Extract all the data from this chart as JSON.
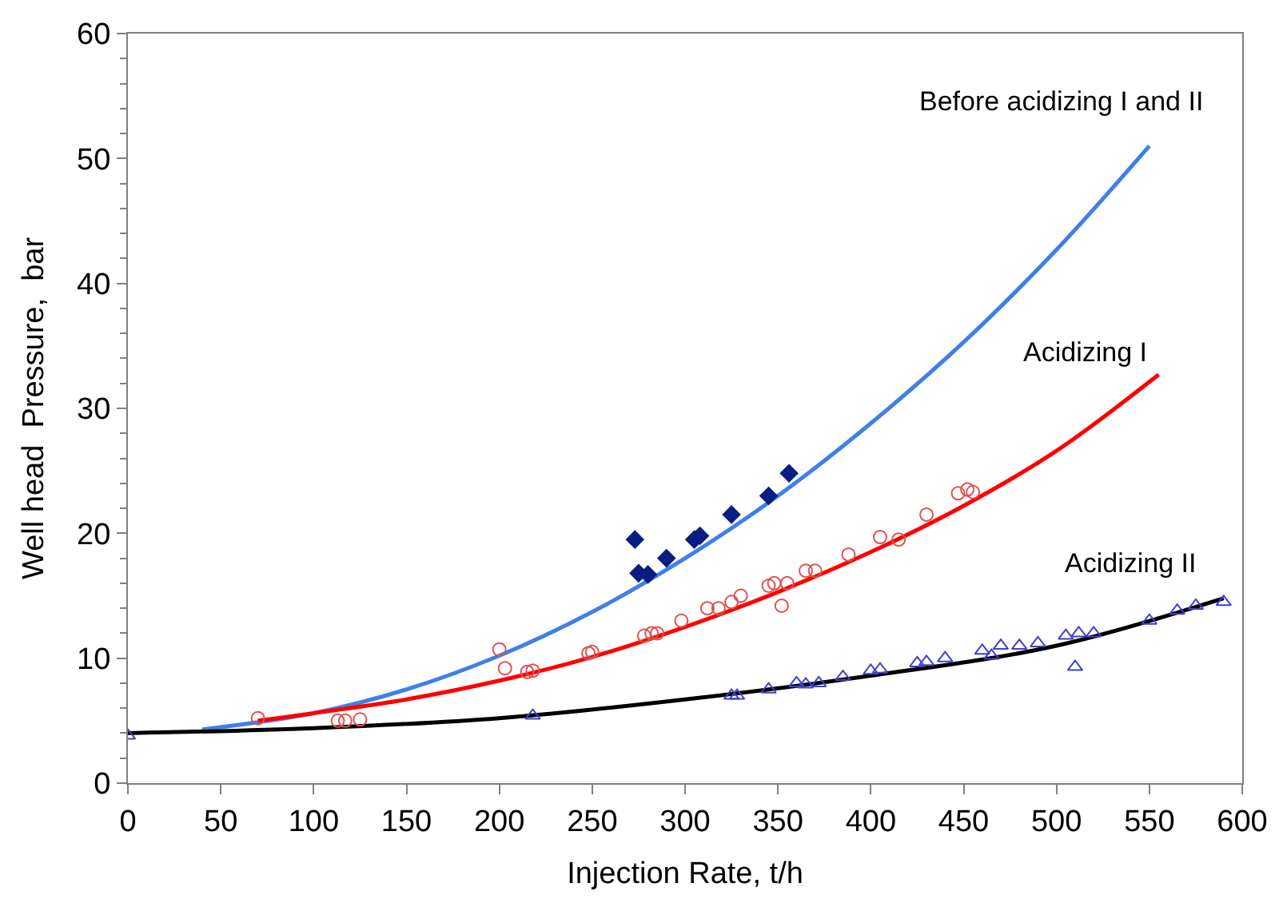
{
  "chart_data": {
    "type": "line",
    "xlabel": "Injection Rate, t/h",
    "ylabel": "Well head  Pressure,  bar",
    "xlim": [
      0,
      600
    ],
    "ylim": [
      0,
      60
    ],
    "xticks": [
      0,
      50,
      100,
      150,
      200,
      250,
      300,
      350,
      400,
      450,
      500,
      550,
      600
    ],
    "yticks": [
      0,
      {
        "value": 2,
        "label": null
      },
      {
        "value": 4,
        "label": null
      },
      {
        "value": 6,
        "label": null
      },
      {
        "value": 8,
        "label": null
      },
      10,
      {
        "value": 12,
        "label": null
      },
      {
        "value": 14,
        "label": null
      },
      {
        "value": 16,
        "label": null
      },
      {
        "value": 18,
        "label": null
      },
      20,
      {
        "value": 22,
        "label": null
      },
      {
        "value": 24,
        "label": null
      },
      {
        "value": 26,
        "label": null
      },
      {
        "value": 28,
        "label": null
      },
      30,
      {
        "value": 32,
        "label": null
      },
      {
        "value": 34,
        "label": null
      },
      {
        "value": 36,
        "label": null
      },
      {
        "value": 38,
        "label": null
      },
      40,
      {
        "value": 42,
        "label": null
      },
      {
        "value": 44,
        "label": null
      },
      {
        "value": 46,
        "label": null
      },
      {
        "value": 48,
        "label": null
      },
      50,
      {
        "value": 52,
        "label": null
      },
      {
        "value": 54,
        "label": null
      },
      {
        "value": 56,
        "label": null
      },
      {
        "value": 58,
        "label": null
      },
      60
    ],
    "legend": false,
    "series": [
      {
        "name": "Before acidizing I and II",
        "color": "#3f7fe8",
        "x": [
          40,
          100,
          150,
          200,
          250,
          300,
          350,
          400,
          450,
          500,
          550
        ],
        "values": [
          4.3,
          5.6,
          7.5,
          10.2,
          13.7,
          18,
          23,
          28.8,
          35.3,
          42.7,
          51
        ]
      },
      {
        "name": "Acidizing I",
        "color": "#ff0000",
        "x": [
          70,
          100,
          150,
          200,
          250,
          300,
          350,
          400,
          450,
          500,
          555
        ],
        "values": [
          5.0,
          5.6,
          6.7,
          8.2,
          10.1,
          12.5,
          15.3,
          18.5,
          22.2,
          26.6,
          32.7
        ]
      },
      {
        "name": "Acidizing II",
        "color": "#000000",
        "x": [
          0,
          100,
          200,
          300,
          400,
          500,
          590
        ],
        "values": [
          4,
          4.4,
          5.2,
          6.7,
          8.6,
          11.0,
          14.8
        ]
      },
      {
        "type": "scatter",
        "marker": "diamond",
        "color": "#0a1e82",
        "x": [
          273,
          275,
          280,
          290,
          305,
          308,
          325,
          345,
          356
        ],
        "values": [
          19.5,
          16.8,
          16.7,
          18,
          19.5,
          19.8,
          21.5,
          23,
          24.8
        ]
      },
      {
        "type": "scatter",
        "marker": "circle",
        "color": "#e05050",
        "x": [
          70,
          113,
          117,
          125,
          200,
          203,
          215,
          218,
          248,
          250,
          278,
          282,
          285,
          298,
          312,
          318,
          325,
          330,
          345,
          348,
          352,
          355,
          365,
          370,
          388,
          405,
          415,
          430,
          447,
          452,
          455
        ],
        "values": [
          5.2,
          5,
          5,
          5.1,
          10.7,
          9.2,
          8.9,
          9,
          10.4,
          10.5,
          11.8,
          12,
          12,
          13,
          14,
          14,
          14.5,
          15,
          15.8,
          16,
          14.2,
          16,
          17,
          17,
          18.3,
          19.7,
          19.5,
          21.5,
          23.2,
          23.5,
          23.3
        ]
      },
      {
        "type": "scatter",
        "marker": "triangle",
        "color": "#4040d0",
        "x": [
          0,
          218,
          325,
          328,
          345,
          360,
          365,
          372,
          385,
          400,
          405,
          425,
          430,
          440,
          460,
          465,
          470,
          480,
          490,
          505,
          510,
          512,
          520,
          550,
          565,
          575,
          590
        ],
        "values": [
          3.8,
          5.4,
          7,
          7,
          7.5,
          8,
          7.9,
          8,
          8.5,
          9,
          9.1,
          9.6,
          9.7,
          10,
          10.6,
          10.2,
          11,
          11,
          11.2,
          11.8,
          9.3,
          12,
          12,
          13,
          13.8,
          14.2,
          14.5
        ]
      }
    ]
  }
}
